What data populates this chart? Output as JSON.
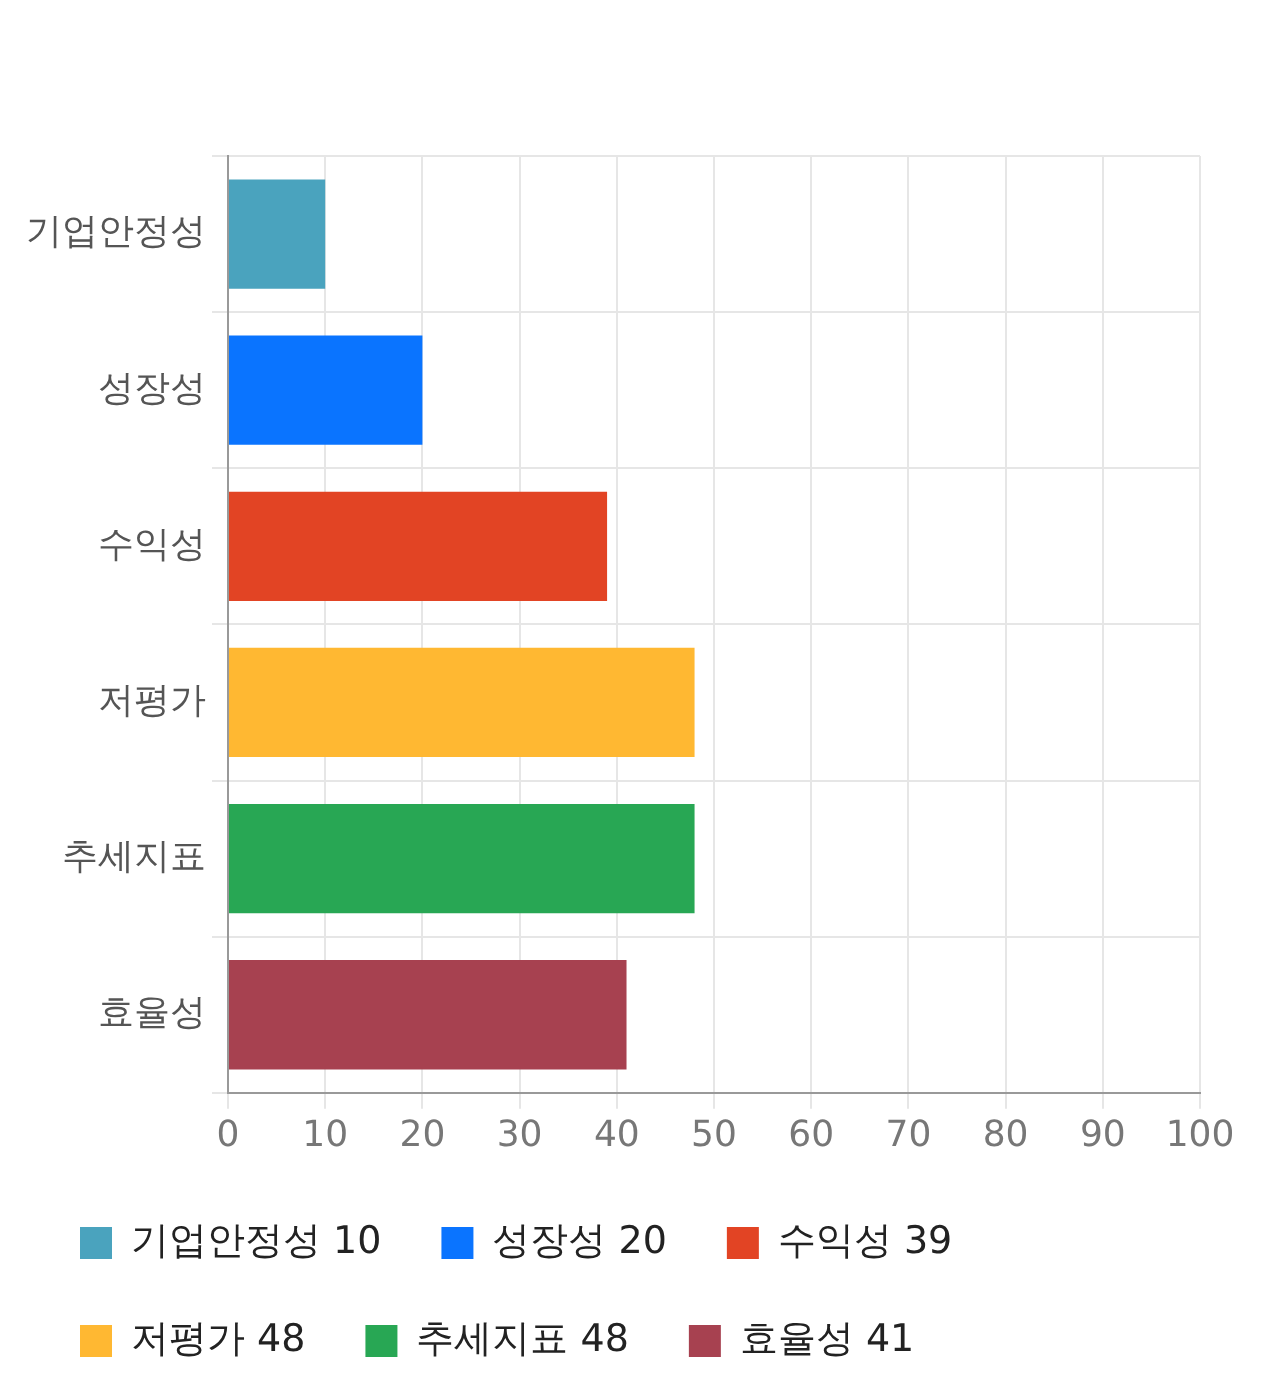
{
  "chart_data": {
    "type": "bar",
    "orientation": "horizontal",
    "categories": [
      "기업안정성",
      "성장성",
      "수익성",
      "저평가",
      "추세지표",
      "효율성"
    ],
    "series": [
      {
        "name": "기업안정성 10",
        "color": "#4aa3be",
        "values": [
          10,
          null,
          null,
          null,
          null,
          null
        ]
      },
      {
        "name": "성장성 20",
        "color": "#0a74ff",
        "values": [
          null,
          20,
          null,
          null,
          null,
          null
        ]
      },
      {
        "name": "수익성 39",
        "color": "#e24424",
        "values": [
          null,
          null,
          39,
          null,
          null,
          null
        ]
      },
      {
        "name": "저평가 48",
        "color": "#ffb832",
        "values": [
          null,
          null,
          null,
          48,
          null,
          null
        ]
      },
      {
        "name": "추세지표 48",
        "color": "#28a754",
        "values": [
          null,
          null,
          null,
          null,
          48,
          null
        ]
      },
      {
        "name": "효율성 41",
        "color": "#a74150",
        "values": [
          null,
          null,
          null,
          null,
          null,
          41
        ]
      }
    ],
    "xlim": [
      0,
      100
    ],
    "xticks": [
      0,
      10,
      20,
      30,
      40,
      50,
      60,
      70,
      80,
      90,
      100
    ],
    "grid": true,
    "legend": "bottom"
  }
}
